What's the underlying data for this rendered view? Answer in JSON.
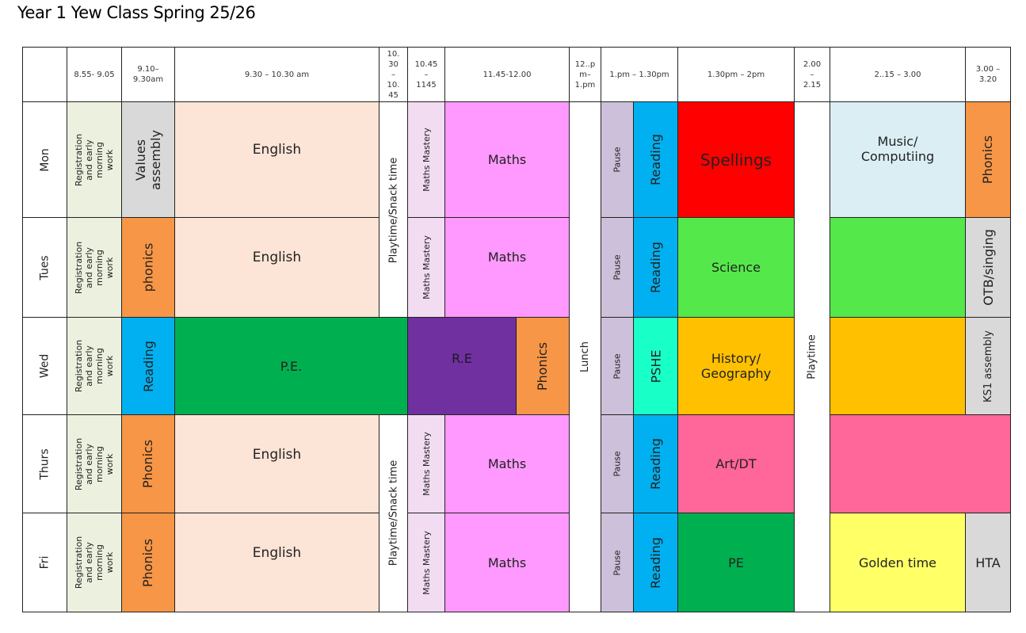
{
  "title": "Year 1 Yew Class Spring 25/26",
  "colors": {
    "registration": "#ebf1de",
    "assembly": "#d9d9d9",
    "phonics": "#f79646",
    "reading": "#00b0f0",
    "english": "#fce4d6",
    "pe": "#00b050",
    "maths": "#ff99ff",
    "mastery": "#f2dcf2",
    "re": "#7030a0",
    "pause": "#ccc0da",
    "pshe": "#19ffc8",
    "spellings": "#ff0000",
    "science": "#55e84a",
    "humanities": "#ffc000",
    "art": "#ff6699",
    "music": "#dbeef4",
    "golden": "#ffff66",
    "grey": "#d9d9d9"
  },
  "headers": {
    "t1": "8.55- 9.05",
    "t2": "9.10– 9.30am",
    "t3": "9.30 – 10.30 am",
    "t4": "10. 30 – 10. 45",
    "t5": "10.45 – 1145",
    "t6": "11.45-12.00",
    "t7": "12..p m– 1.pm",
    "t8": "1.pm – 1.30pm",
    "t9": "1.30pm – 2pm",
    "t10": "2.00 – 2.15",
    "t11": "2..15 – 3.00",
    "t12": "3.00 – 3.20"
  },
  "days": {
    "mon": "Mon",
    "tue": "Tues",
    "wed": "Wed",
    "thu": "Thurs",
    "fri": "Fri"
  },
  "mon": {
    "reg": "Registration and early morning work",
    "assembly": "Values assembly",
    "english": "English",
    "mastery": "Maths Mastery",
    "maths": "Maths",
    "pause": "Pause",
    "reading": "Reading",
    "spellings": "Spellings",
    "music": "Music/ Computiing",
    "phonics": "Phonics"
  },
  "tue": {
    "reg": "Registration and early morning work",
    "phonics": "phonics",
    "english": "English",
    "mastery": "Maths Mastery",
    "maths": "Maths",
    "pause": "Pause",
    "reading": "Reading",
    "science": "Science",
    "otb": "OTB/singing"
  },
  "wed": {
    "reg": "Registration and early morning work",
    "reading": "Reading",
    "pe": "P.E.",
    "re": "R.E",
    "phonics": "Phonics",
    "pause": "Pause",
    "pshe": "PSHE",
    "history": "History/ Geography",
    "ks1": "KS1 assembly"
  },
  "thu": {
    "reg": "Registration and early morning work",
    "phonics": "Phonics",
    "english": "English",
    "mastery": "Maths Mastery",
    "maths": "Maths",
    "pause": "Pause",
    "reading": "Reading",
    "art": "Art/DT"
  },
  "fri": {
    "reg": "Registration and early morning work",
    "phonics": "Phonics",
    "english": "English",
    "mastery": "Maths Mastery",
    "maths": "Maths",
    "pause": "Pause",
    "reading": "Reading",
    "pe": "PE",
    "golden": "Golden time",
    "hta": "HTA"
  },
  "spans": {
    "snack_top": "Playtime/Snack time",
    "snack_bottom": "Playtime/Snack time",
    "lunch": "Lunch",
    "playtime": "Playtime"
  }
}
